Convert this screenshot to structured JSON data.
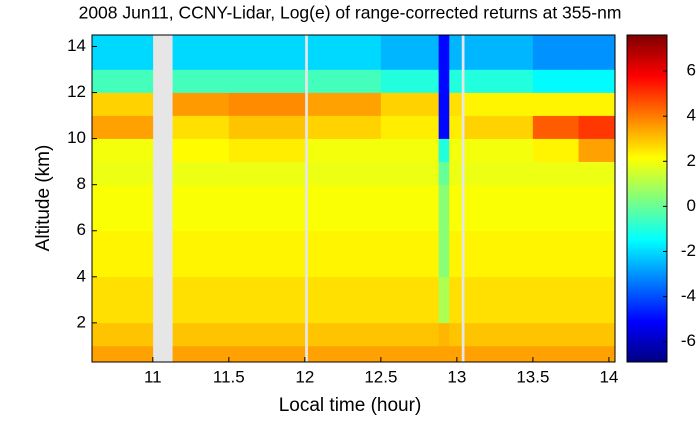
{
  "chart_data": {
    "type": "heatmap",
    "title": "2008 Jun11, CCNY-Lidar, Log(e) of range-corrected returns at 355-nm",
    "xlabel": "Local time (hour)",
    "ylabel": "Altitude (km)",
    "x_edges": [
      10.6,
      11.0,
      11.13,
      11.5,
      12.0,
      12.02,
      12.5,
      12.88,
      12.95,
      13.03,
      13.05,
      13.5,
      13.8,
      14.04
    ],
    "y_edges": [
      0.3,
      1,
      2,
      4,
      6,
      8,
      9,
      10,
      11,
      12,
      13,
      14.5
    ],
    "z": [
      [
        3.5,
        null,
        3.5,
        3.5,
        null,
        3.5,
        3.5,
        3.5,
        3.5,
        null,
        3.5,
        3.5,
        3.5
      ],
      [
        3,
        null,
        3,
        3,
        null,
        3,
        3,
        3.2,
        3,
        null,
        3,
        3,
        3
      ],
      [
        2.6,
        null,
        2.6,
        2.6,
        null,
        2.6,
        2.6,
        1,
        2.6,
        null,
        2.6,
        2.6,
        2.6
      ],
      [
        2.3,
        null,
        2.3,
        2.3,
        null,
        2.3,
        2.3,
        0.5,
        2.3,
        null,
        2.3,
        2.3,
        2.3
      ],
      [
        2.1,
        null,
        2.1,
        2.1,
        null,
        2.1,
        2.1,
        0.5,
        2.1,
        null,
        2.1,
        2.1,
        2.1
      ],
      [
        1.9,
        null,
        1.9,
        1.9,
        null,
        1.9,
        1.9,
        0,
        1.9,
        null,
        1.9,
        1.9,
        1.9
      ],
      [
        2,
        null,
        2.2,
        2.4,
        null,
        2,
        2,
        -1,
        2,
        null,
        2,
        2.3,
        3.5
      ],
      [
        3.5,
        null,
        2.6,
        3,
        null,
        2.8,
        2.4,
        -5,
        2.4,
        null,
        2.8,
        4.5,
        5
      ],
      [
        2.8,
        null,
        3.6,
        3.8,
        null,
        3.5,
        2.8,
        -5,
        2.6,
        null,
        2.3,
        2.3,
        2.3
      ],
      [
        -0.5,
        null,
        -0.5,
        -0.5,
        null,
        -0.5,
        -1,
        -5,
        -1,
        null,
        -1,
        -1.5,
        -1.5
      ],
      [
        -2,
        null,
        -2,
        -2,
        null,
        -2,
        -2.5,
        -5,
        -2.5,
        null,
        -2.5,
        -3,
        -3
      ]
    ],
    "xlim": [
      10.6,
      14.04
    ],
    "ylim": [
      0.3,
      14.5
    ],
    "clim": [
      -6.9,
      7.6
    ],
    "xticks": [
      11,
      11.5,
      12,
      12.5,
      13,
      13.5,
      14
    ],
    "yticks": [
      2,
      4,
      6,
      8,
      10,
      12,
      14
    ],
    "cticks": [
      -6,
      -4,
      -2,
      0,
      2,
      4,
      6
    ],
    "colormap": "jet",
    "missing_color": "#e6e6e6"
  }
}
